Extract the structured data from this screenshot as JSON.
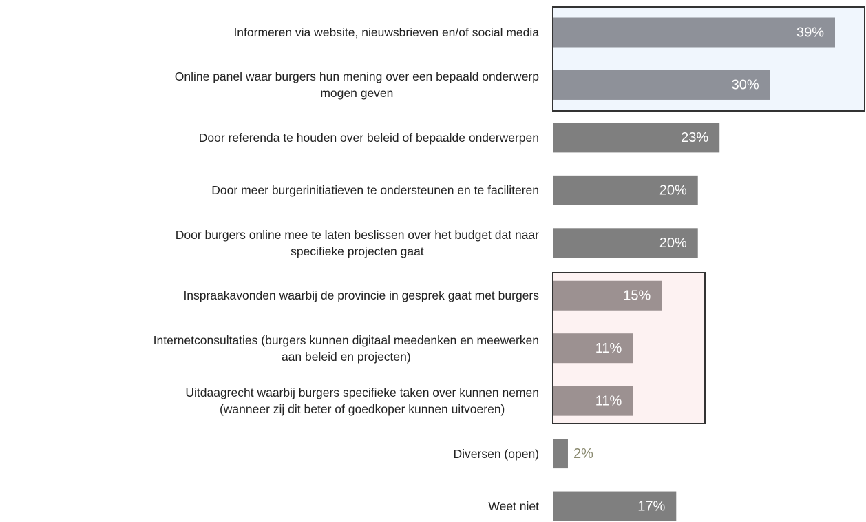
{
  "chart_data": {
    "type": "bar",
    "orientation": "horizontal",
    "categories": [
      "Informeren via website, nieuwsbrieven en/of social media",
      "Online panel waar burgers hun mening over een bepaald onderwerp\nmogen geven",
      "Door referenda te houden over beleid of bepaalde onderwerpen",
      "Door meer burgerinitiatieven te ondersteunen en te faciliteren",
      "Door burgers online mee te laten beslissen over het budget dat naar\nspecifieke projecten gaat",
      "Inspraakavonden waarbij de provincie in gesprek gaat met burgers",
      "Internetconsultaties (burgers kunnen digitaal meedenken en meewerken\naan beleid en projecten)",
      "Uitdaagrecht waarbij burgers  specifieke taken over kunnen nemen\n(wanneer zij dit beter of goedkoper kunnen uitvoeren)",
      "Diversen (open)",
      "Weet niet"
    ],
    "values": [
      39,
      30,
      23,
      20,
      20,
      15,
      11,
      11,
      2,
      17
    ],
    "value_labels": [
      "39%",
      "30%",
      "23%",
      "20%",
      "20%",
      "15%",
      "11%",
      "11%",
      "2%",
      "17%"
    ],
    "colors": [
      "#8e9199",
      "#8e9199",
      "#7f7f7f",
      "#7f7f7f",
      "#7f7f7f",
      "#9c9191",
      "#9c9191",
      "#9c9191",
      "#7f7f7f",
      "#7f7f7f"
    ]
  }
}
